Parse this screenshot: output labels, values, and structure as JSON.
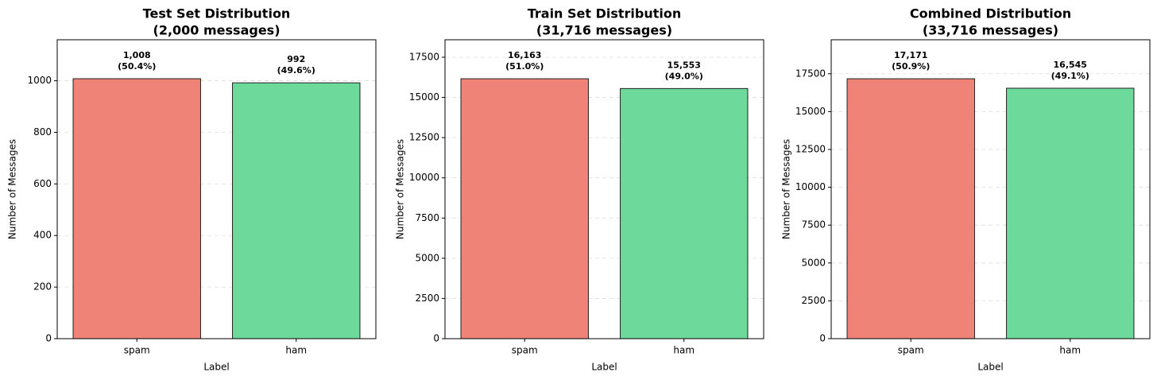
{
  "chart_data": [
    {
      "type": "bar",
      "title": "Test Set Distribution",
      "subtitle": "(2,000 messages)",
      "categories": [
        "spam",
        "ham"
      ],
      "values": [
        1008,
        992
      ],
      "value_labels": [
        "1,008",
        "992"
      ],
      "share_labels": [
        "(50.4%)",
        "(49.6%)"
      ],
      "colors": [
        "#f08378",
        "#6dd99b"
      ],
      "xlabel": "Label",
      "ylabel": "Number of Messages",
      "ylim": [
        0,
        1159
      ],
      "yticks": [
        0,
        200,
        400,
        600,
        800,
        1000
      ],
      "grid": true
    },
    {
      "type": "bar",
      "title": "Train Set Distribution",
      "subtitle": "(31,716 messages)",
      "categories": [
        "spam",
        "ham"
      ],
      "values": [
        16163,
        15553
      ],
      "value_labels": [
        "16,163",
        "15,553"
      ],
      "share_labels": [
        "(51.0%)",
        "(49.0%)"
      ],
      "colors": [
        "#f08378",
        "#6dd99b"
      ],
      "xlabel": "Label",
      "ylabel": "Number of Messages",
      "ylim": [
        0,
        18587
      ],
      "yticks": [
        0,
        2500,
        5000,
        7500,
        10000,
        12500,
        15000,
        17500
      ],
      "grid": true
    },
    {
      "type": "bar",
      "title": "Combined Distribution",
      "subtitle": "(33,716 messages)",
      "categories": [
        "spam",
        "ham"
      ],
      "values": [
        17171,
        16545
      ],
      "value_labels": [
        "17,171",
        "16,545"
      ],
      "share_labels": [
        "(50.9%)",
        "(49.1%)"
      ],
      "colors": [
        "#f08378",
        "#6dd99b"
      ],
      "xlabel": "Label",
      "ylabel": "Number of Messages",
      "ylim": [
        0,
        19747
      ],
      "yticks": [
        0,
        2500,
        5000,
        7500,
        10000,
        12500,
        15000,
        17500
      ],
      "grid": true
    }
  ]
}
